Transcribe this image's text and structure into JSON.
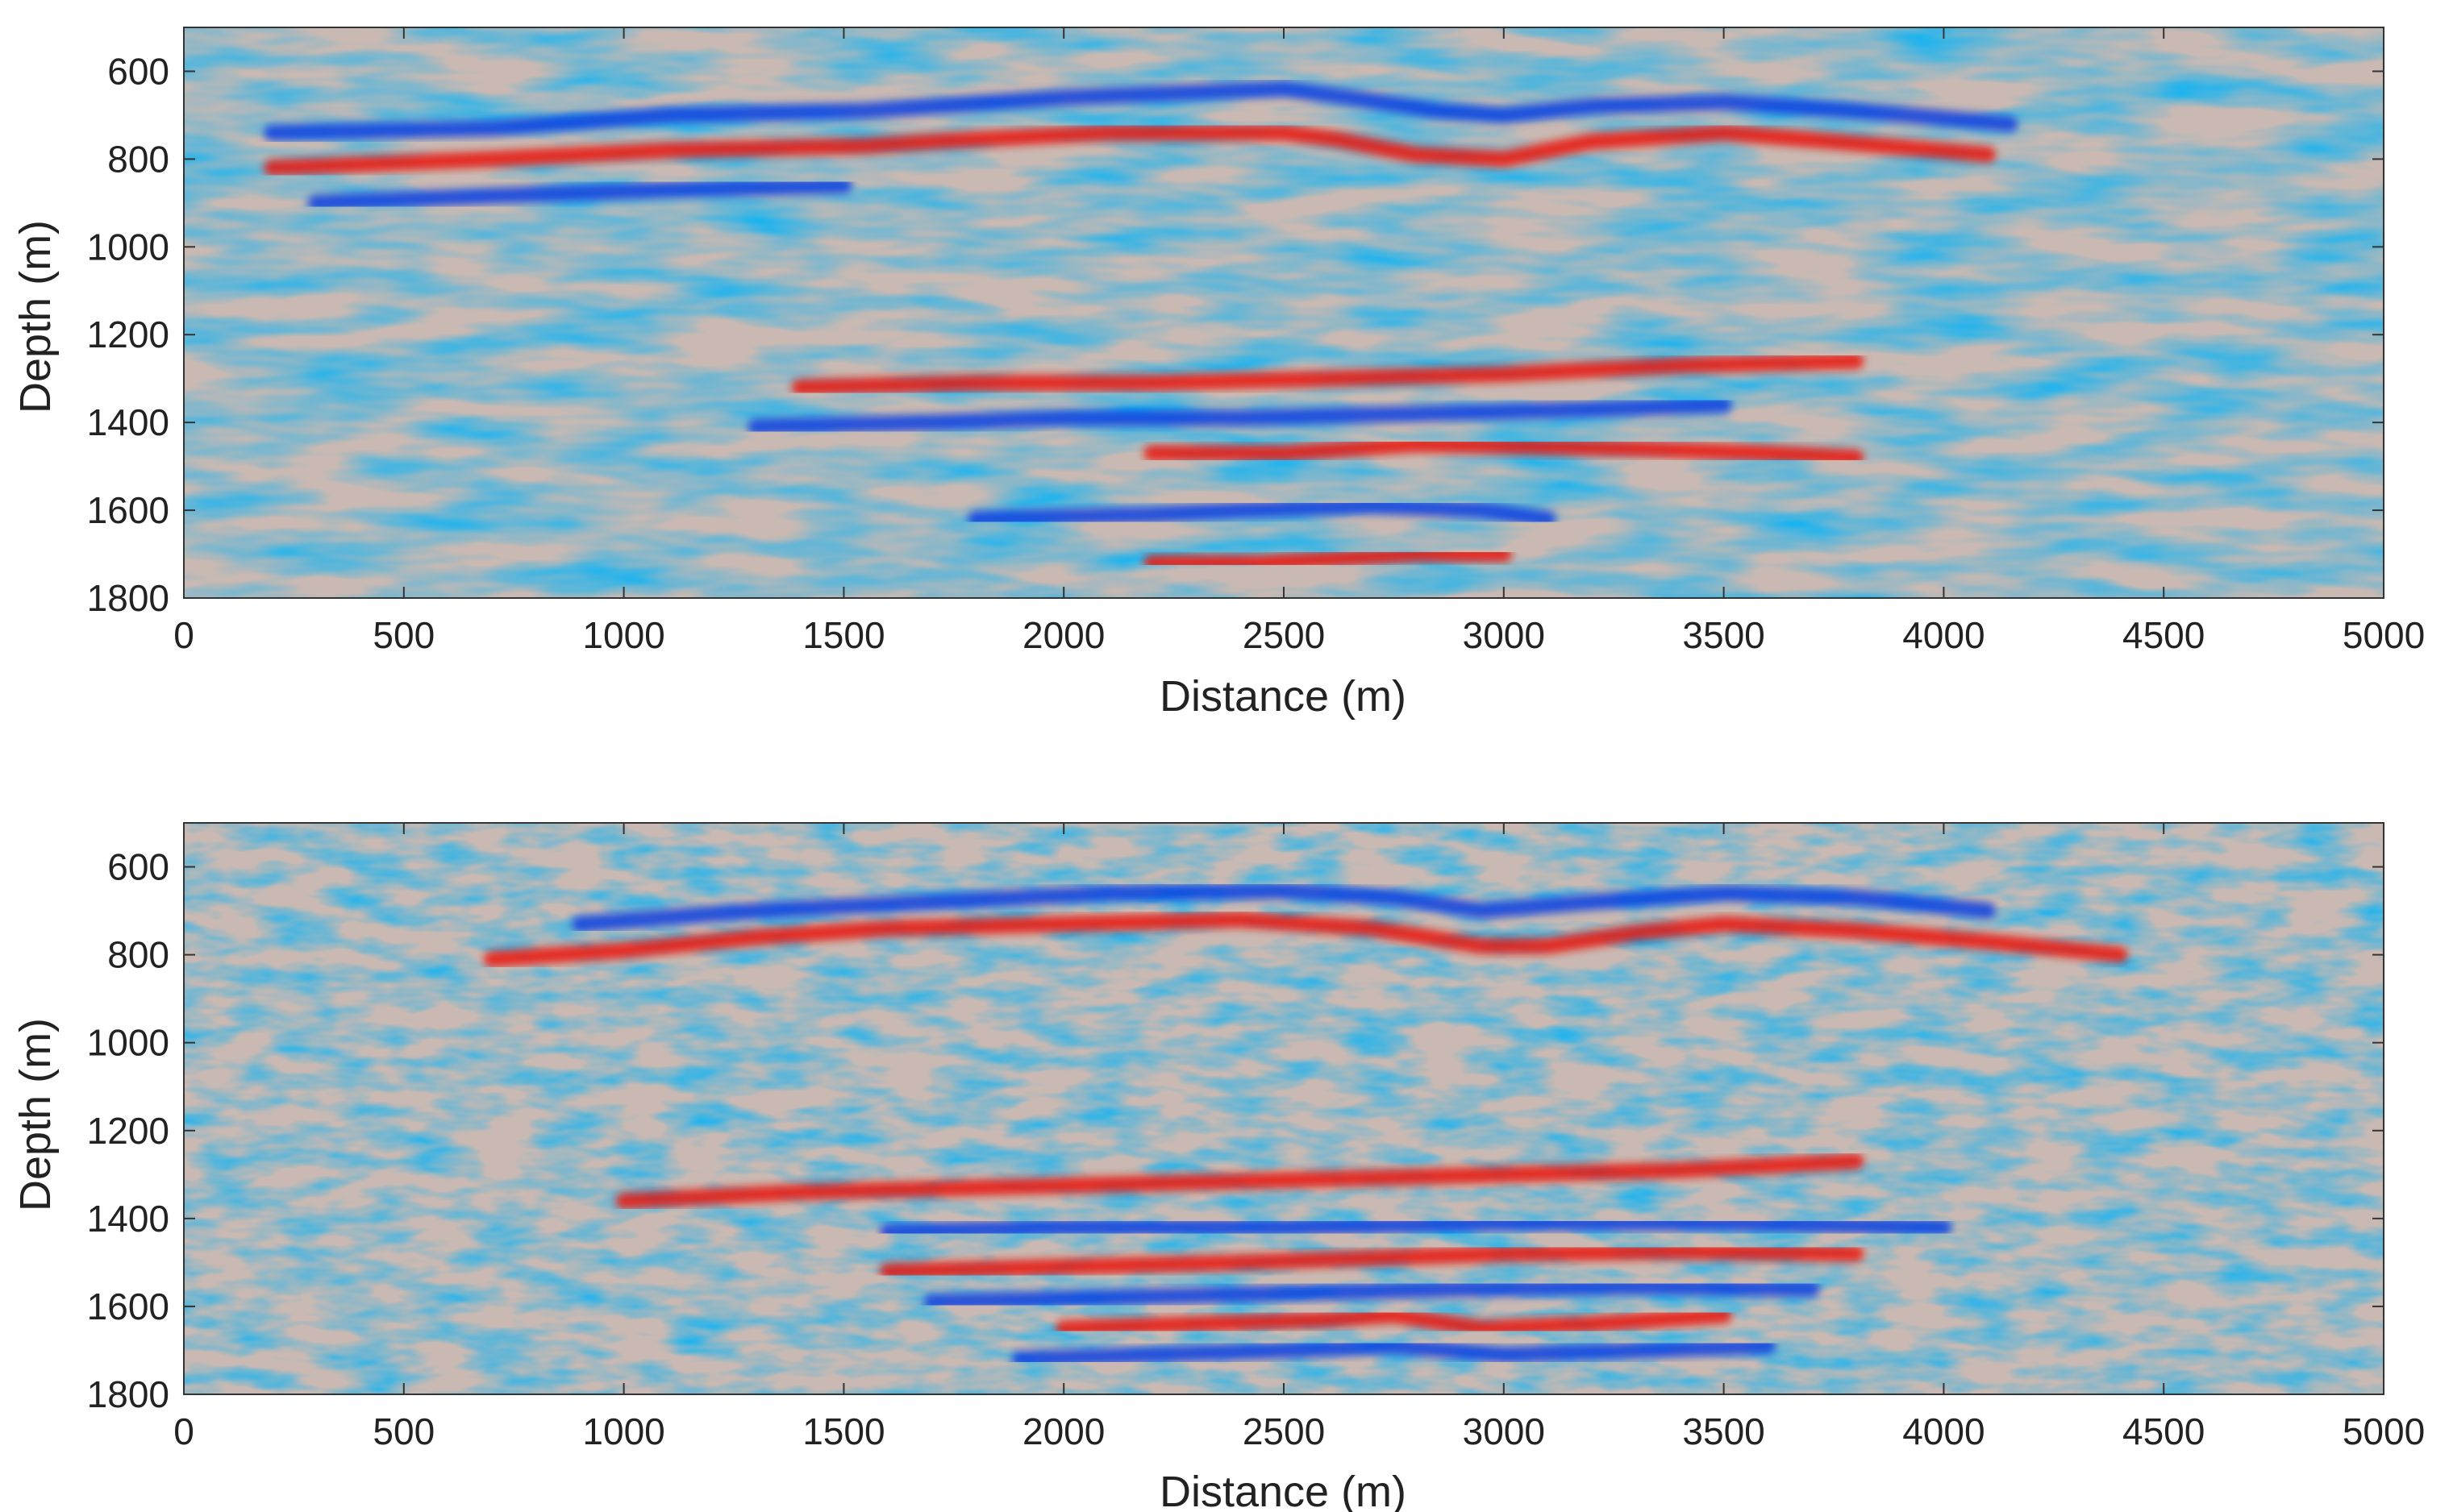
{
  "chart_data": [
    {
      "type": "heatmap",
      "title": "",
      "xlabel": "Distance (m)",
      "ylabel": "Depth (m)",
      "xlim": [
        0,
        5000
      ],
      "ylim": [
        500,
        1800
      ],
      "y_reversed": true,
      "x_ticks": [
        0,
        500,
        1000,
        1500,
        2000,
        2500,
        3000,
        3500,
        4000,
        4500,
        5000
      ],
      "y_ticks": [
        600,
        800,
        1000,
        1200,
        1400,
        1600,
        1800
      ],
      "colormap": {
        "negative": "#0a3fe0",
        "middle": "#c9b9b2",
        "positive": "#e8140f"
      },
      "grid": false,
      "reflectors": [
        {
          "polarity": "positive",
          "points": [
            [
              200,
              820
            ],
            [
              700,
              800
            ],
            [
              1100,
              780
            ],
            [
              1550,
              770
            ],
            [
              1700,
              760
            ],
            [
              2100,
              740
            ],
            [
              2500,
              740
            ],
            [
              2620,
              755
            ],
            [
              2800,
              790
            ],
            [
              3000,
              800
            ],
            [
              3200,
              760
            ],
            [
              3500,
              740
            ],
            [
              3750,
              760
            ],
            [
              4100,
              790
            ]
          ]
        },
        {
          "polarity": "negative",
          "points": [
            [
              200,
              740
            ],
            [
              700,
              730
            ],
            [
              1100,
              700
            ],
            [
              1550,
              690
            ],
            [
              2000,
              660
            ],
            [
              2500,
              640
            ],
            [
              2650,
              660
            ],
            [
              2850,
              690
            ],
            [
              3000,
              700
            ],
            [
              3200,
              680
            ],
            [
              3500,
              670
            ],
            [
              3800,
              690
            ],
            [
              4150,
              720
            ]
          ]
        },
        {
          "polarity": "negative",
          "points": [
            [
              300,
              900
            ],
            [
              800,
              880
            ],
            [
              1100,
              870
            ],
            [
              1500,
              860
            ]
          ]
        },
        {
          "polarity": "positive",
          "points": [
            [
              1400,
              1320
            ],
            [
              1800,
              1310
            ],
            [
              2200,
              1310
            ],
            [
              2600,
              1300
            ],
            [
              3000,
              1290
            ],
            [
              3400,
              1270
            ],
            [
              3800,
              1260
            ]
          ]
        },
        {
          "polarity": "negative",
          "points": [
            [
              1300,
              1410
            ],
            [
              1700,
              1400
            ],
            [
              2000,
              1390
            ],
            [
              2400,
              1390
            ],
            [
              2800,
              1380
            ],
            [
              3200,
              1370
            ],
            [
              3500,
              1360
            ]
          ]
        },
        {
          "polarity": "positive",
          "points": [
            [
              2200,
              1470
            ],
            [
              2500,
              1470
            ],
            [
              2800,
              1450
            ],
            [
              3300,
              1460
            ],
            [
              3600,
              1470
            ],
            [
              3800,
              1480
            ]
          ]
        },
        {
          "polarity": "negative",
          "points": [
            [
              1800,
              1620
            ],
            [
              2200,
              1610
            ],
            [
              2400,
              1600
            ],
            [
              2700,
              1590
            ],
            [
              2950,
              1600
            ],
            [
              3100,
              1620
            ]
          ]
        },
        {
          "polarity": "positive",
          "points": [
            [
              2200,
              1720
            ],
            [
              2450,
              1720
            ],
            [
              2800,
              1700
            ],
            [
              3000,
              1700
            ]
          ]
        }
      ]
    },
    {
      "type": "heatmap",
      "title": "",
      "xlabel": "Distance (m)",
      "ylabel": "Depth (m)",
      "xlim": [
        0,
        5000
      ],
      "ylim": [
        500,
        1800
      ],
      "y_reversed": true,
      "x_ticks": [
        0,
        500,
        1000,
        1500,
        2000,
        2500,
        3000,
        3500,
        4000,
        4500,
        5000
      ],
      "y_ticks": [
        600,
        800,
        1000,
        1200,
        1400,
        1600,
        1800
      ],
      "colormap": {
        "negative": "#0a3fe0",
        "middle": "#c9b9b2",
        "positive": "#e8140f"
      },
      "grid": false,
      "reflectors": [
        {
          "polarity": "positive",
          "points": [
            [
              700,
              810
            ],
            [
              1000,
              790
            ],
            [
              1300,
              760
            ],
            [
              1600,
              740
            ],
            [
              2000,
              730
            ],
            [
              2400,
              720
            ],
            [
              2700,
              740
            ],
            [
              2950,
              780
            ],
            [
              3100,
              780
            ],
            [
              3300,
              750
            ],
            [
              3500,
              730
            ],
            [
              3800,
              745
            ],
            [
              4100,
              770
            ],
            [
              4400,
              800
            ]
          ]
        },
        {
          "polarity": "negative",
          "points": [
            [
              900,
              730
            ],
            [
              1300,
              700
            ],
            [
              1700,
              680
            ],
            [
              2100,
              660
            ],
            [
              2500,
              655
            ],
            [
              2750,
              670
            ],
            [
              2950,
              700
            ],
            [
              3200,
              680
            ],
            [
              3500,
              660
            ],
            [
              3800,
              670
            ],
            [
              4100,
              700
            ]
          ]
        },
        {
          "polarity": "positive",
          "points": [
            [
              1000,
              1360
            ],
            [
              1400,
              1340
            ],
            [
              1800,
              1330
            ],
            [
              2200,
              1320
            ],
            [
              2600,
              1310
            ],
            [
              3000,
              1300
            ],
            [
              3400,
              1290
            ],
            [
              3800,
              1270
            ]
          ]
        },
        {
          "polarity": "positive",
          "points": [
            [
              1600,
              1520
            ],
            [
              2000,
              1510
            ],
            [
              2400,
              1500
            ],
            [
              2700,
              1490
            ],
            [
              3000,
              1480
            ],
            [
              3400,
              1475
            ],
            [
              3800,
              1480
            ]
          ]
        },
        {
          "polarity": "negative",
          "points": [
            [
              1600,
              1430
            ],
            [
              2000,
              1420
            ],
            [
              2500,
              1420
            ],
            [
              3000,
              1410
            ],
            [
              3500,
              1410
            ],
            [
              4000,
              1420
            ]
          ]
        },
        {
          "polarity": "negative",
          "points": [
            [
              1700,
              1590
            ],
            [
              2100,
              1580
            ],
            [
              2500,
              1570
            ],
            [
              2900,
              1560
            ],
            [
              3300,
              1555
            ],
            [
              3700,
              1560
            ]
          ]
        },
        {
          "polarity": "positive",
          "points": [
            [
              2000,
              1650
            ],
            [
              2300,
              1640
            ],
            [
              2600,
              1630
            ],
            [
              2750,
              1620
            ],
            [
              2950,
              1650
            ],
            [
              3200,
              1640
            ],
            [
              3500,
              1620
            ]
          ]
        },
        {
          "polarity": "negative",
          "points": [
            [
              1900,
              1720
            ],
            [
              2200,
              1710
            ],
            [
              2500,
              1700
            ],
            [
              2750,
              1690
            ],
            [
              3000,
              1710
            ],
            [
              3300,
              1700
            ],
            [
              3600,
              1690
            ]
          ]
        }
      ]
    }
  ]
}
